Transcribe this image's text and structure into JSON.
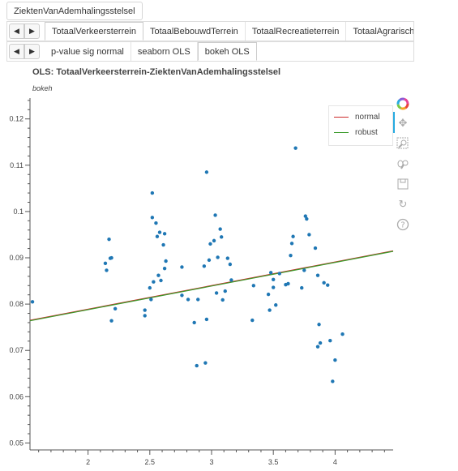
{
  "header": {
    "dataset_label": "ZiektenVanAdemhalingsstelsel"
  },
  "feature_tabs": {
    "items": [
      "TotaalVerkeersterrein",
      "TotaalBebouwdTerrein",
      "TotaalRecreatieterrein",
      "TotaalAgrarischTe"
    ],
    "active": 0
  },
  "view_tabs": {
    "items": [
      "p-value sig normal",
      "seaborn OLS",
      "bokeh OLS"
    ],
    "active": 2
  },
  "plot": {
    "title": "OLS: TotaalVerkeersterrein-ZiektenVanAdemhalingsstelsel",
    "subtitle": "bokeh"
  },
  "legend": {
    "items": [
      {
        "label": "normal",
        "color": "#cc2a2a"
      },
      {
        "label": "robust",
        "color": "#3a9a2a"
      }
    ]
  },
  "toolbar": {
    "tools": [
      "bokeh-logo-icon",
      "pan-icon",
      "box-zoom-icon",
      "wheel-zoom-icon",
      "save-icon",
      "reset-icon",
      "help-icon"
    ]
  },
  "chart_data": {
    "type": "scatter",
    "title": "OLS: TotaalVerkeersterrein-ZiektenVanAdemhalingsstelsel",
    "xlim": [
      1.53,
      4.47
    ],
    "ylim": [
      0.0485,
      0.1245
    ],
    "xticks": [
      "2",
      "2.5",
      "3",
      "3.5",
      "4"
    ],
    "yticks": [
      "0.05",
      "0.06",
      "0.07",
      "0.08",
      "0.09",
      "0.1",
      "0.11",
      "0.12"
    ],
    "xtick_values": [
      2,
      2.5,
      3,
      3.5,
      4
    ],
    "ytick_values": [
      0.05,
      0.06,
      0.07,
      0.08,
      0.09,
      0.1,
      0.11,
      0.12
    ],
    "grid": false,
    "legend_position": "top-right",
    "points": [
      [
        1.55,
        0.0805
      ],
      [
        2.14,
        0.0888
      ],
      [
        2.15,
        0.0873
      ],
      [
        2.17,
        0.094
      ],
      [
        2.18,
        0.0899
      ],
      [
        2.19,
        0.09
      ],
      [
        2.19,
        0.0764
      ],
      [
        2.22,
        0.079
      ],
      [
        2.46,
        0.0775
      ],
      [
        2.46,
        0.0787
      ],
      [
        2.5,
        0.0835
      ],
      [
        2.51,
        0.081
      ],
      [
        2.52,
        0.104
      ],
      [
        2.52,
        0.0987
      ],
      [
        2.53,
        0.0848
      ],
      [
        2.55,
        0.0975
      ],
      [
        2.56,
        0.0946
      ],
      [
        2.58,
        0.0955
      ],
      [
        2.57,
        0.0862
      ],
      [
        2.59,
        0.0851
      ],
      [
        2.61,
        0.0928
      ],
      [
        2.62,
        0.0952
      ],
      [
        2.62,
        0.0877
      ],
      [
        2.63,
        0.0893
      ],
      [
        2.76,
        0.088
      ],
      [
        2.76,
        0.0819
      ],
      [
        2.81,
        0.081
      ],
      [
        2.86,
        0.076
      ],
      [
        2.88,
        0.0667
      ],
      [
        2.89,
        0.081
      ],
      [
        2.94,
        0.0882
      ],
      [
        2.95,
        0.0673
      ],
      [
        2.96,
        0.1085
      ],
      [
        2.96,
        0.0767
      ],
      [
        2.98,
        0.0895
      ],
      [
        2.99,
        0.093
      ],
      [
        3.02,
        0.0937
      ],
      [
        3.03,
        0.0992
      ],
      [
        3.04,
        0.0824
      ],
      [
        3.05,
        0.0901
      ],
      [
        3.07,
        0.0962
      ],
      [
        3.08,
        0.0945
      ],
      [
        3.09,
        0.0809
      ],
      [
        3.11,
        0.0828
      ],
      [
        3.13,
        0.0899
      ],
      [
        3.15,
        0.0886
      ],
      [
        3.16,
        0.0852
      ],
      [
        3.33,
        0.0765
      ],
      [
        3.34,
        0.084
      ],
      [
        3.46,
        0.0821
      ],
      [
        3.47,
        0.0787
      ],
      [
        3.48,
        0.0868
      ],
      [
        3.5,
        0.0853
      ],
      [
        3.5,
        0.0836
      ],
      [
        3.52,
        0.0798
      ],
      [
        3.55,
        0.0866
      ],
      [
        3.6,
        0.0842
      ],
      [
        3.62,
        0.0844
      ],
      [
        3.64,
        0.0905
      ],
      [
        3.65,
        0.0931
      ],
      [
        3.66,
        0.0946
      ],
      [
        3.68,
        0.1137
      ],
      [
        3.73,
        0.0835
      ],
      [
        3.75,
        0.0873
      ],
      [
        3.76,
        0.099
      ],
      [
        3.77,
        0.0984
      ],
      [
        3.79,
        0.095
      ],
      [
        3.84,
        0.0921
      ],
      [
        3.86,
        0.0708
      ],
      [
        3.86,
        0.0862
      ],
      [
        3.87,
        0.0756
      ],
      [
        3.88,
        0.0716
      ],
      [
        3.91,
        0.0846
      ],
      [
        3.94,
        0.0841
      ],
      [
        3.96,
        0.0721
      ],
      [
        3.98,
        0.0633
      ],
      [
        4.0,
        0.0679
      ],
      [
        4.06,
        0.0735
      ]
    ],
    "series": [
      {
        "name": "normal",
        "type": "line",
        "x": [
          1.53,
          4.47
        ],
        "y": [
          0.0765,
          0.0915
        ]
      },
      {
        "name": "robust",
        "type": "line",
        "x": [
          1.53,
          4.47
        ],
        "y": [
          0.0764,
          0.0914
        ]
      }
    ]
  }
}
